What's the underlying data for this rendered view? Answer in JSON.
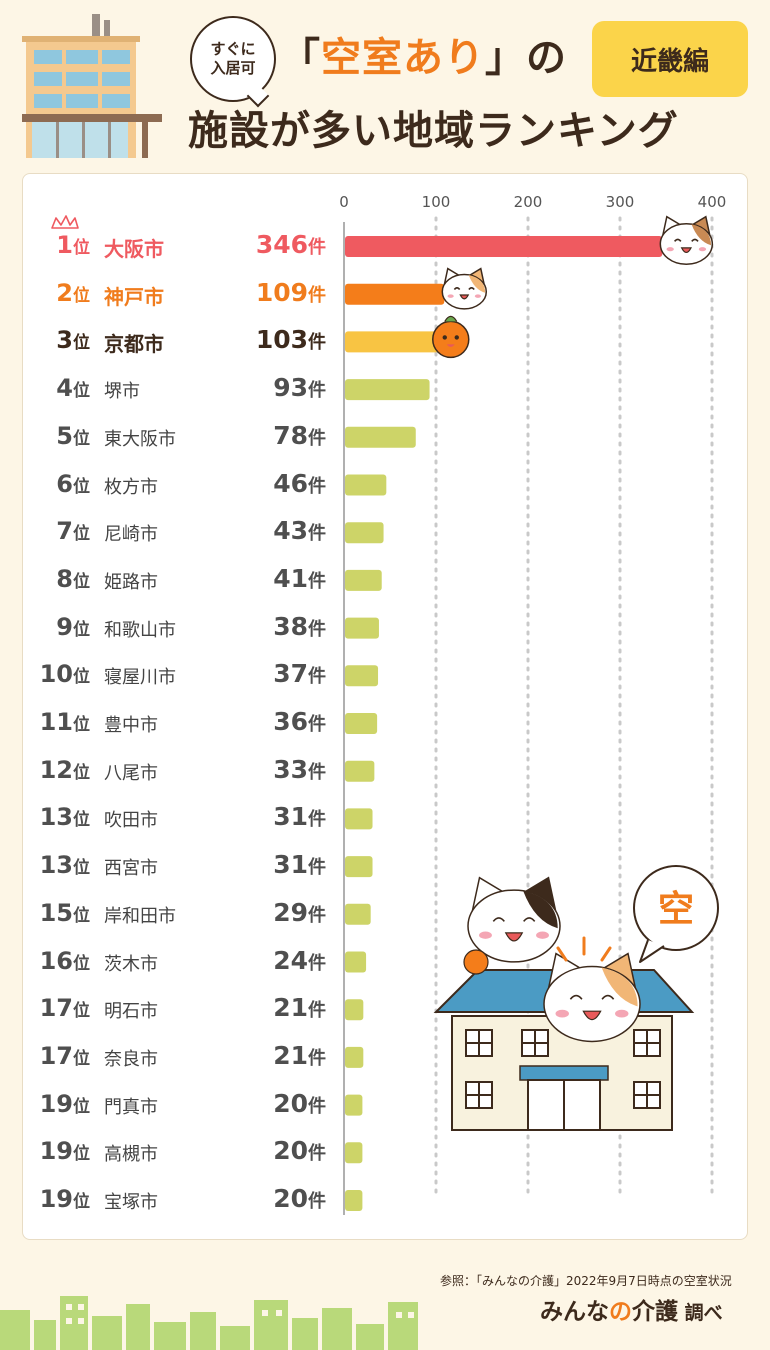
{
  "header": {
    "bubble_line1": "すぐに",
    "bubble_line2": "入居可",
    "title_open": "「",
    "title_highlight": "空室あり",
    "title_close": "」の",
    "title_line2": "施設が多い地域ランキング",
    "region_tag": "近畿編"
  },
  "rank_suffix": "位",
  "unit_suffix": "件",
  "chart_data": {
    "type": "bar",
    "orientation": "horizontal",
    "xlim": [
      0,
      400
    ],
    "ticks": [
      0,
      100,
      200,
      300,
      400
    ],
    "grid": true,
    "colors": {
      "rank1": "#ef5a60",
      "rank2": "#f47d1a",
      "rank3": "#f8c443",
      "others": "#cdd468"
    },
    "rows": [
      {
        "rank": "1",
        "name": "大阪市",
        "value": 346
      },
      {
        "rank": "2",
        "name": "神戸市",
        "value": 109
      },
      {
        "rank": "3",
        "name": "京都市",
        "value": 103
      },
      {
        "rank": "4",
        "name": "堺市",
        "value": 93
      },
      {
        "rank": "5",
        "name": "東大阪市",
        "value": 78
      },
      {
        "rank": "6",
        "name": "枚方市",
        "value": 46
      },
      {
        "rank": "7",
        "name": "尼崎市",
        "value": 43
      },
      {
        "rank": "8",
        "name": "姫路市",
        "value": 41
      },
      {
        "rank": "9",
        "name": "和歌山市",
        "value": 38
      },
      {
        "rank": "10",
        "name": "寝屋川市",
        "value": 37
      },
      {
        "rank": "11",
        "name": "豊中市",
        "value": 36
      },
      {
        "rank": "12",
        "name": "八尾市",
        "value": 33
      },
      {
        "rank": "13",
        "name": "吹田市",
        "value": 31
      },
      {
        "rank": "13",
        "name": "西宮市",
        "value": 31
      },
      {
        "rank": "15",
        "name": "岸和田市",
        "value": 29
      },
      {
        "rank": "16",
        "name": "茨木市",
        "value": 24
      },
      {
        "rank": "17",
        "name": "明石市",
        "value": 21
      },
      {
        "rank": "17",
        "name": "奈良市",
        "value": 21
      },
      {
        "rank": "19",
        "name": "門真市",
        "value": 20
      },
      {
        "rank": "19",
        "name": "高槻市",
        "value": 20
      },
      {
        "rank": "19",
        "name": "宝塚市",
        "value": 20
      }
    ]
  },
  "illustration": {
    "speech_char": "空"
  },
  "footer": {
    "source": "参照：「みんなの介護」2022年9月7日時点の空室状況",
    "brand_a": "みんな",
    "brand_o": "の",
    "brand_b": "介護",
    "brand_suffix": " 調べ"
  }
}
